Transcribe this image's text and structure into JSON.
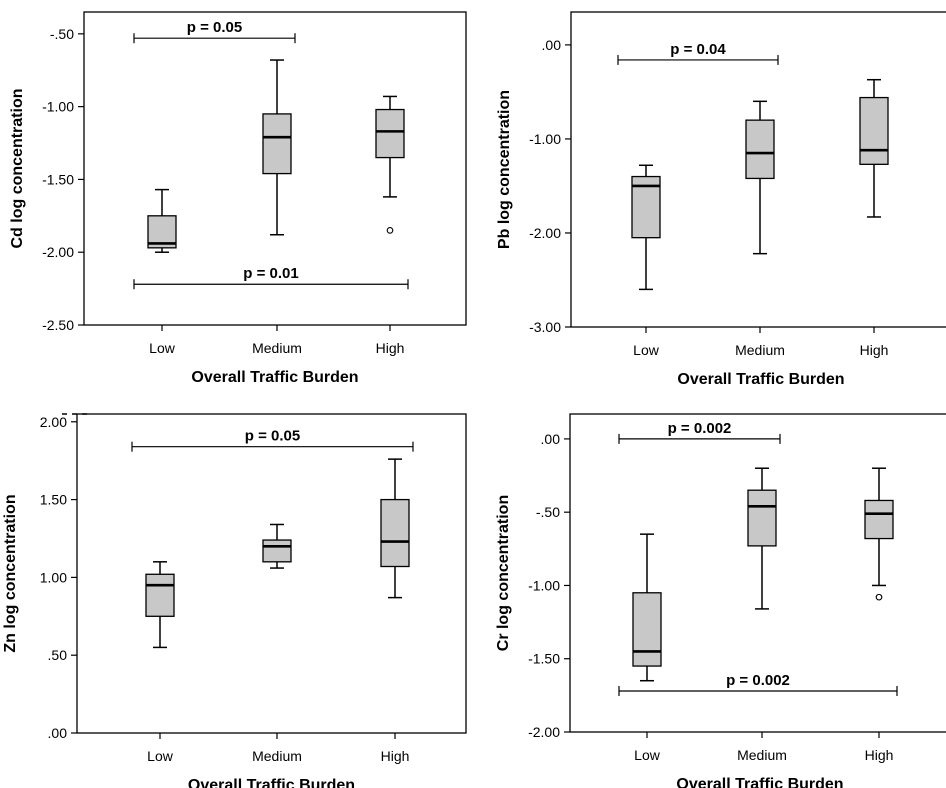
{
  "chart_data": [
    {
      "type": "boxplot",
      "xlabel": "Overall Traffic Burden",
      "ylabel": "Cd log concentration",
      "categories": [
        "Low",
        "Medium",
        "High"
      ],
      "ylim": [
        -2.5,
        -0.35
      ],
      "yticks": [
        -0.5,
        -1.0,
        -1.5,
        -2.0,
        -2.5
      ],
      "ytick_labels": [
        "-.50",
        "-1.00",
        "-1.50",
        "-2.00",
        "-2.50"
      ],
      "boxes": [
        {
          "category": "Low",
          "min": -2.0,
          "q1": -1.97,
          "median": -1.94,
          "q3": -1.75,
          "max": -1.57,
          "outliers": []
        },
        {
          "category": "Medium",
          "min": -1.88,
          "q1": -1.46,
          "median": -1.21,
          "q3": -1.05,
          "max": -0.68,
          "outliers": []
        },
        {
          "category": "High",
          "min": -1.62,
          "q1": -1.35,
          "median": -1.17,
          "q3": -1.02,
          "max": -0.93,
          "outliers": [
            -1.85
          ]
        }
      ],
      "annotations": [
        {
          "text": "p = 0.05",
          "from": "Low",
          "to": "Medium",
          "y": -0.53
        },
        {
          "text": "p = 0.01",
          "from": "Low",
          "to": "High",
          "y": -2.22
        }
      ]
    },
    {
      "type": "boxplot",
      "xlabel": "Overall Traffic Burden",
      "ylabel": "Pb log concentration",
      "categories": [
        "Low",
        "Medium",
        "High"
      ],
      "ylim": [
        -3.0,
        0.35
      ],
      "yticks": [
        0.0,
        -1.0,
        -2.0,
        -3.0
      ],
      "ytick_labels": [
        ".00",
        "-1.00",
        "-2.00",
        "-3.00"
      ],
      "boxes": [
        {
          "category": "Low",
          "min": -2.6,
          "q1": -2.05,
          "median": -1.5,
          "q3": -1.4,
          "max": -1.28,
          "outliers": []
        },
        {
          "category": "Medium",
          "min": -2.22,
          "q1": -1.42,
          "median": -1.15,
          "q3": -0.8,
          "max": -0.6,
          "outliers": []
        },
        {
          "category": "High",
          "min": -1.83,
          "q1": -1.27,
          "median": -1.12,
          "q3": -0.56,
          "max": -0.37,
          "outliers": []
        }
      ],
      "annotations": [
        {
          "text": "p = 0.04",
          "from": "Low",
          "to": "Medium",
          "y": -0.16
        }
      ]
    },
    {
      "type": "boxplot",
      "xlabel": "Overall Traffic Burden",
      "ylabel": "Zn log concentration",
      "categories": [
        "Low",
        "Medium",
        "High"
      ],
      "ylim": [
        0.0,
        2.05
      ],
      "yticks": [
        2.0,
        1.5,
        1.0,
        0.5,
        0.0
      ],
      "ytick_labels": [
        "2.00",
        "1.50",
        "1.00",
        ".50",
        ".00"
      ],
      "boxes": [
        {
          "category": "Low",
          "min": 0.55,
          "q1": 0.75,
          "median": 0.95,
          "q3": 1.02,
          "max": 1.1,
          "outliers": []
        },
        {
          "category": "Medium",
          "min": 1.06,
          "q1": 1.1,
          "median": 1.2,
          "q3": 1.24,
          "max": 1.34,
          "outliers": []
        },
        {
          "category": "High",
          "min": 0.87,
          "q1": 1.07,
          "median": 1.23,
          "q3": 1.5,
          "max": 1.76,
          "outliers": []
        }
      ],
      "annotations": [
        {
          "text": "p = 0.05",
          "from": "Low",
          "to": "High",
          "y": 1.84
        }
      ]
    },
    {
      "type": "boxplot",
      "xlabel": "Overall Traffic Burden",
      "ylabel": "Cr log concentration",
      "categories": [
        "Low",
        "Medium",
        "High"
      ],
      "ylim": [
        -2.0,
        0.17
      ],
      "yticks": [
        0.0,
        -0.5,
        -1.0,
        -1.5,
        -2.0
      ],
      "ytick_labels": [
        ".00",
        "-.50",
        "-1.00",
        "-1.50",
        "-2.00"
      ],
      "boxes": [
        {
          "category": "Low",
          "min": -1.65,
          "q1": -1.55,
          "median": -1.45,
          "q3": -1.05,
          "max": -0.65,
          "outliers": []
        },
        {
          "category": "Medium",
          "min": -1.16,
          "q1": -0.73,
          "median": -0.46,
          "q3": -0.35,
          "max": -0.2,
          "outliers": []
        },
        {
          "category": "High",
          "min": -1.0,
          "q1": -0.68,
          "median": -0.51,
          "q3": -0.42,
          "max": -0.2,
          "outliers": [
            -1.08
          ]
        }
      ],
      "annotations": [
        {
          "text": "p = 0.002",
          "from": "Low",
          "to": "Medium",
          "y": 0.0
        },
        {
          "text": "p = 0.002",
          "from": "Low",
          "to": "High",
          "y": -1.72
        }
      ]
    }
  ],
  "colors": {
    "box_fill": "#c8c8c8",
    "stroke": "#000000"
  }
}
